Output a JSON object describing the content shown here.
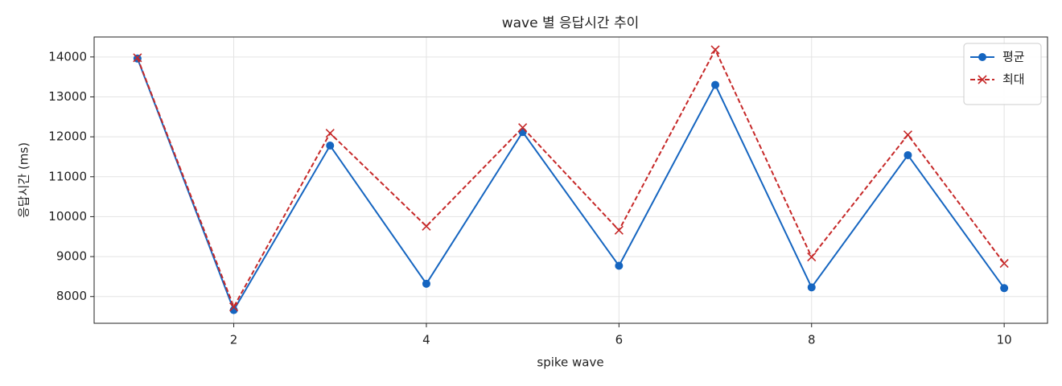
{
  "chart_data": {
    "type": "line",
    "title": "wave 별 응답시간 추이",
    "xlabel": "spike wave",
    "ylabel": "응답시간 (ms)",
    "x": [
      1,
      2,
      3,
      4,
      5,
      6,
      7,
      8,
      9,
      10
    ],
    "series": [
      {
        "name": "평균",
        "color": "#1565c0",
        "linestyle": "solid",
        "marker": "circle",
        "values": [
          13960,
          7660,
          11780,
          8320,
          12120,
          8770,
          13300,
          8230,
          11540,
          8210
        ]
      },
      {
        "name": "최대",
        "color": "#c62828",
        "linestyle": "dashed",
        "marker": "x",
        "values": [
          13980,
          7740,
          12090,
          9760,
          12230,
          9660,
          14180,
          8990,
          12050,
          8830
        ]
      }
    ],
    "xlim": [
      0.55,
      10.45
    ],
    "xticks": [
      2,
      4,
      6,
      8,
      10
    ],
    "ylim": [
      7330,
      14500
    ],
    "yticks": [
      8000,
      9000,
      10000,
      11000,
      12000,
      13000,
      14000
    ],
    "grid": true,
    "legend": "upper right"
  }
}
